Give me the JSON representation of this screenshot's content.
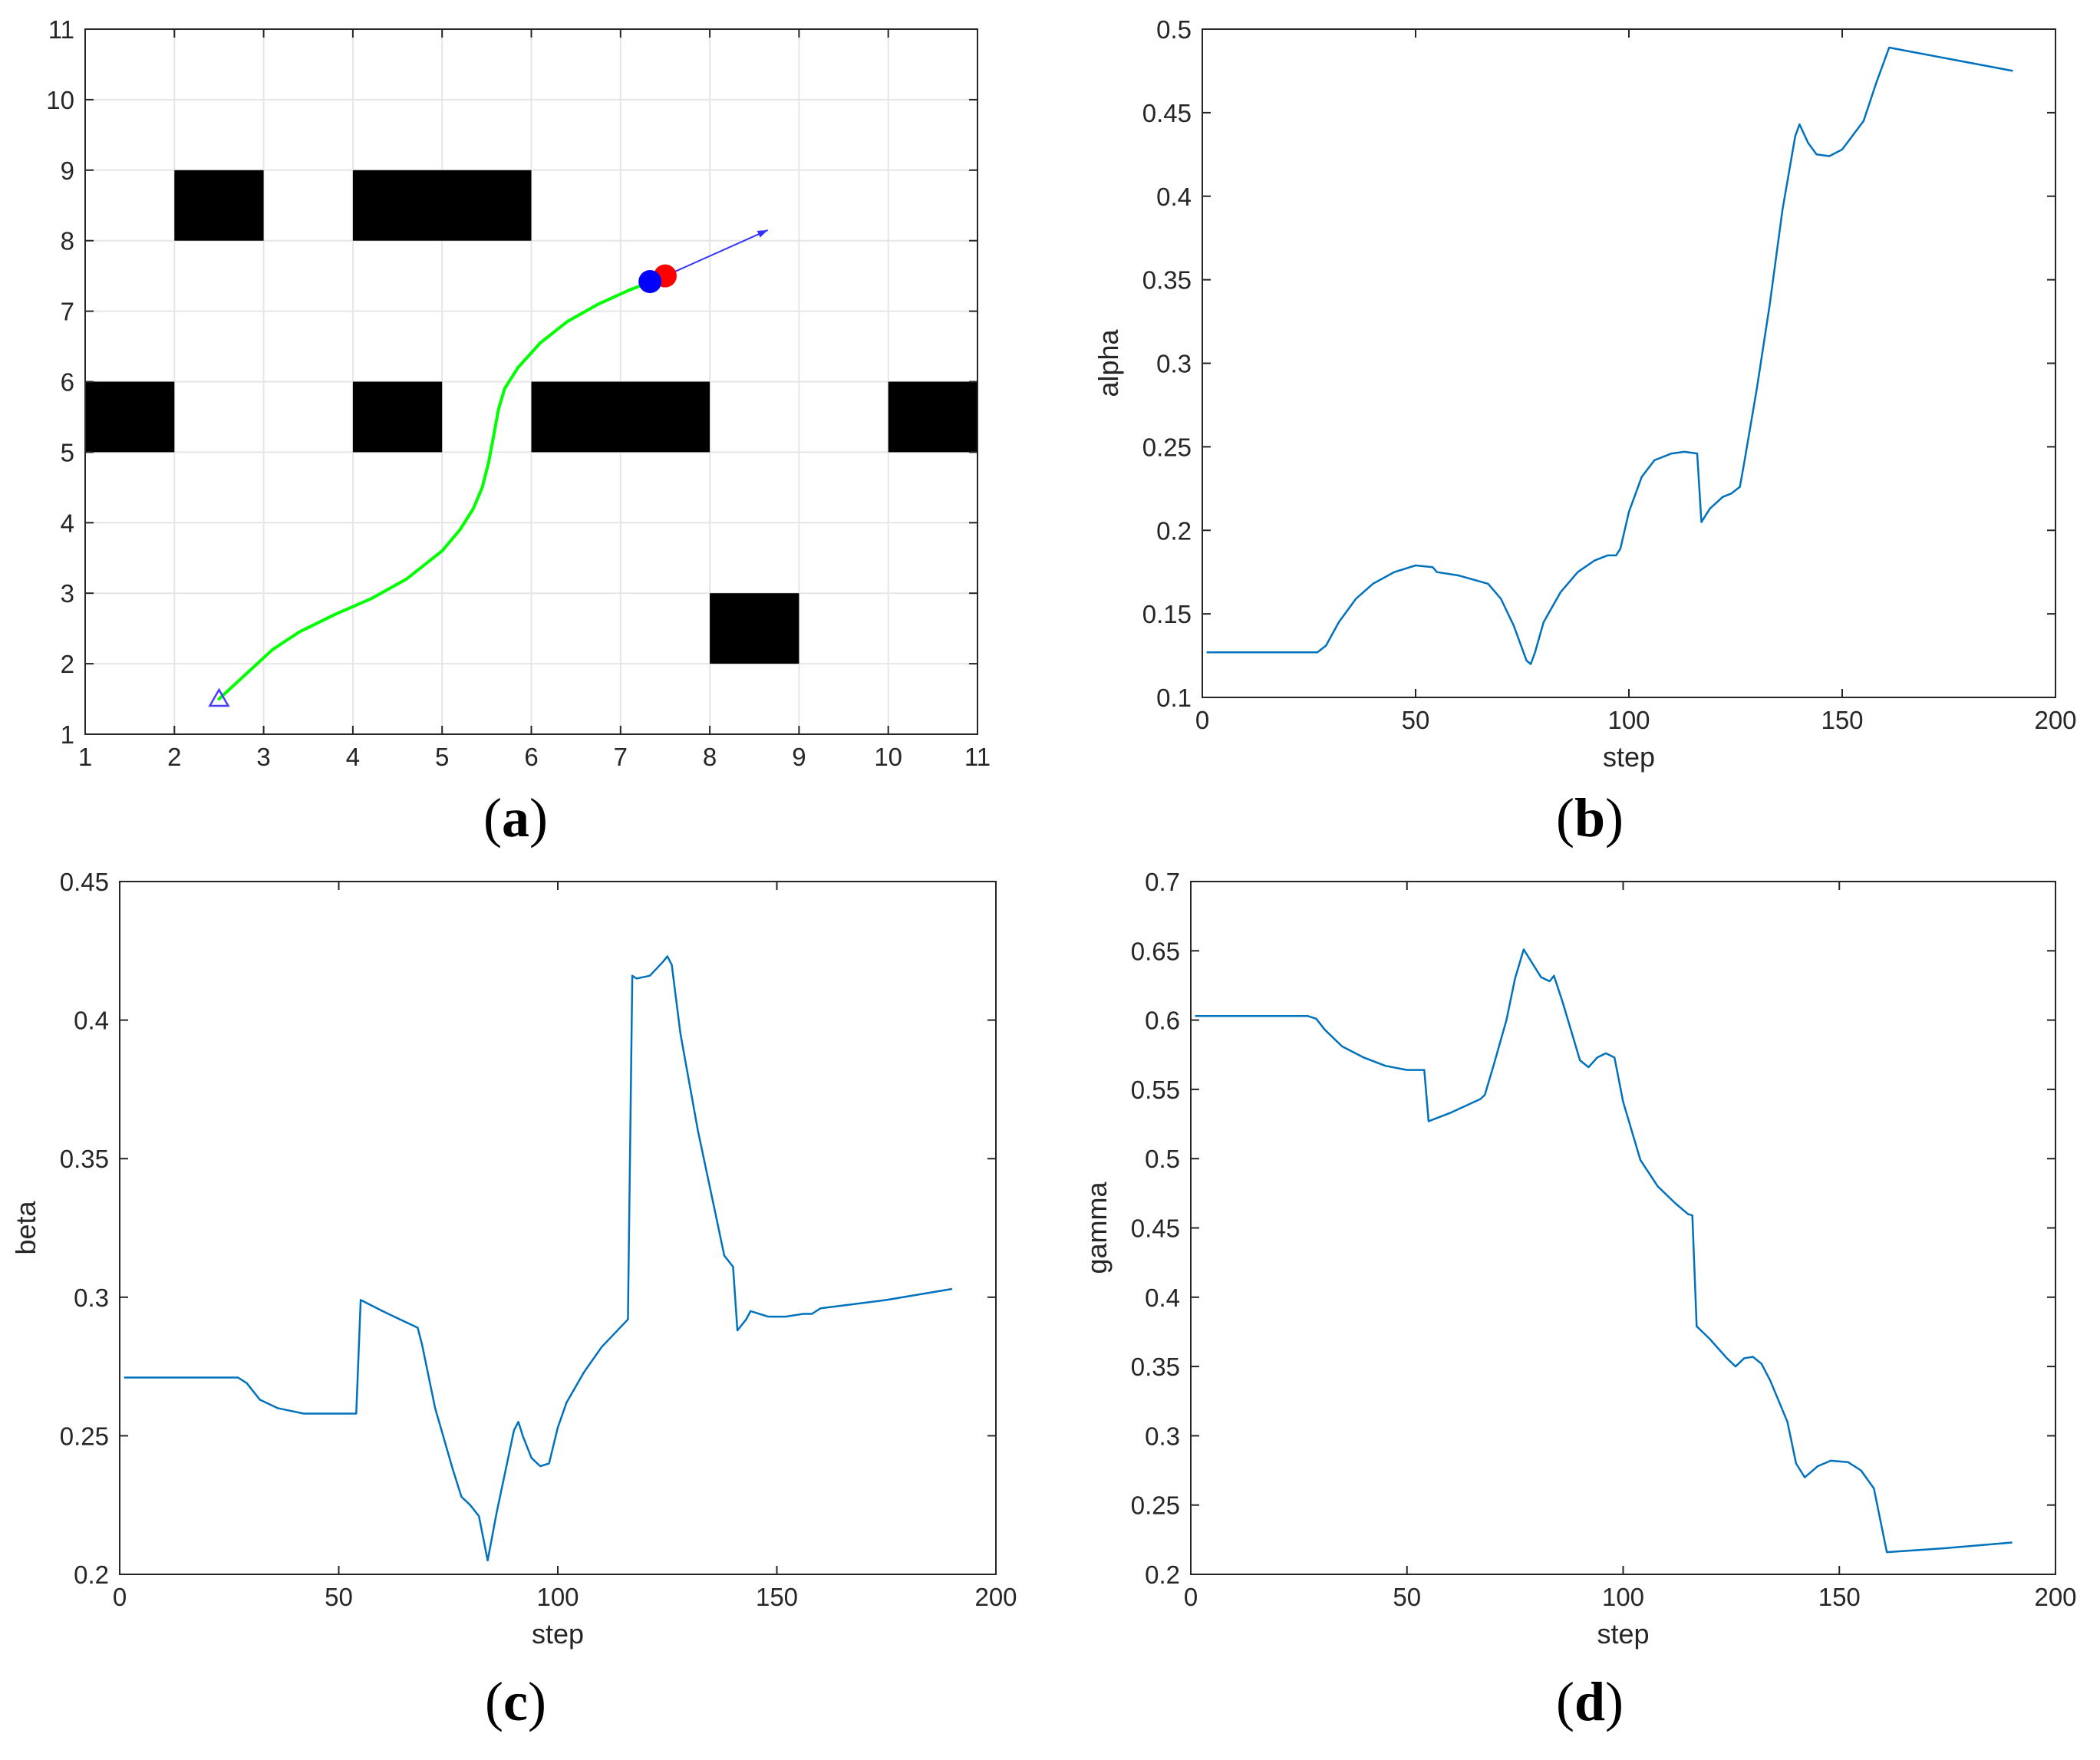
{
  "colors": {
    "line": "#0072BD",
    "path": "#00FF00",
    "obstacle": "#000000",
    "grid": "#e6e6e6",
    "axis": "#262626",
    "robot_blue": "#0000FF",
    "robot_red": "#FF0000",
    "heading_arrow": "#3333ff",
    "start_marker": "#4a3cff"
  },
  "chart_data": [
    {
      "id": "a",
      "type": "scatter",
      "caption": {
        "open": "(",
        "letter": "a",
        "close": ")"
      },
      "xlim": [
        1,
        11
      ],
      "ylim": [
        1,
        11
      ],
      "xticks": [
        "1",
        "2",
        "3",
        "4",
        "5",
        "6",
        "7",
        "8",
        "9",
        "10",
        "11"
      ],
      "yticks": [
        "1",
        "2",
        "3",
        "4",
        "5",
        "6",
        "7",
        "8",
        "9",
        "10",
        "11"
      ],
      "grid": true,
      "obstacles": [
        {
          "x": [
            2,
            3
          ],
          "y": [
            8,
            9
          ]
        },
        {
          "x": [
            4,
            6
          ],
          "y": [
            8,
            9
          ]
        },
        {
          "x": [
            1,
            2
          ],
          "y": [
            5,
            6
          ]
        },
        {
          "x": [
            4,
            5
          ],
          "y": [
            5,
            6
          ]
        },
        {
          "x": [
            6,
            8
          ],
          "y": [
            5,
            6
          ]
        },
        {
          "x": [
            10,
            11
          ],
          "y": [
            5,
            6
          ]
        },
        {
          "x": [
            8,
            9
          ],
          "y": [
            2,
            3
          ]
        }
      ],
      "path": {
        "x": [
          2.5,
          2.8,
          3.1,
          3.4,
          3.8,
          4.2,
          4.6,
          5.0,
          5.2,
          5.35,
          5.45,
          5.52,
          5.58,
          5.63,
          5.7,
          5.85,
          6.1,
          6.4,
          6.75,
          7.1,
          7.35
        ],
        "y": [
          1.5,
          1.85,
          2.2,
          2.45,
          2.7,
          2.92,
          3.2,
          3.6,
          3.9,
          4.2,
          4.5,
          4.85,
          5.25,
          5.6,
          5.9,
          6.2,
          6.55,
          6.85,
          7.1,
          7.3,
          7.42
        ]
      },
      "start": {
        "x": 2.5,
        "y": 1.5
      },
      "robot_blue": {
        "x": 7.33,
        "y": 7.42
      },
      "robot_red": {
        "x": 7.5,
        "y": 7.5
      },
      "heading": {
        "x": [
          7.5,
          8.65
        ],
        "y": [
          7.5,
          8.15
        ]
      }
    },
    {
      "id": "b",
      "type": "line",
      "caption": {
        "open": "(",
        "letter": "b",
        "close": ")"
      },
      "xlabel": "step",
      "ylabel": "alpha",
      "xlim": [
        0,
        200
      ],
      "ylim": [
        0.1,
        0.5
      ],
      "xticks": [
        "0",
        "50",
        "100",
        "150",
        "200"
      ],
      "yticks": [
        "0.1",
        "0.15",
        "0.2",
        "0.25",
        "0.3",
        "0.35",
        "0.4",
        "0.45",
        "0.5"
      ],
      "grid": false,
      "series": [
        {
          "x": [
            1,
            27,
            29,
            32,
            36,
            40,
            45,
            50,
            54,
            55,
            60,
            67,
            70,
            73,
            76,
            77,
            78,
            80,
            84,
            88,
            92,
            95,
            97,
            98,
            100,
            103,
            106,
            110,
            113,
            116,
            117,
            119,
            122,
            124,
            126,
            127,
            130,
            133,
            136,
            139,
            140,
            142,
            144,
            147,
            150,
            155,
            158,
            161,
            190
          ],
          "y": [
            0.127,
            0.127,
            0.131,
            0.145,
            0.159,
            0.168,
            0.175,
            0.179,
            0.178,
            0.175,
            0.173,
            0.168,
            0.159,
            0.143,
            0.122,
            0.12,
            0.127,
            0.145,
            0.163,
            0.175,
            0.182,
            0.185,
            0.185,
            0.189,
            0.211,
            0.232,
            0.242,
            0.246,
            0.247,
            0.246,
            0.205,
            0.213,
            0.22,
            0.222,
            0.226,
            0.24,
            0.285,
            0.335,
            0.392,
            0.436,
            0.443,
            0.432,
            0.425,
            0.424,
            0.428,
            0.445,
            0.468,
            0.489,
            0.475
          ]
        }
      ]
    },
    {
      "id": "c",
      "type": "line",
      "caption": {
        "open": "(",
        "letter": "c",
        "close": ")"
      },
      "xlabel": "step",
      "ylabel": "beta",
      "xlim": [
        0,
        200
      ],
      "ylim": [
        0.2,
        0.45
      ],
      "xticks": [
        "0",
        "50",
        "100",
        "150",
        "200"
      ],
      "yticks": [
        "0.2",
        "0.25",
        "0.3",
        "0.35",
        "0.4",
        "0.45"
      ],
      "grid": false,
      "series": [
        {
          "x": [
            1,
            27,
            29,
            32,
            36,
            42,
            48,
            54,
            55,
            60,
            64,
            68,
            69,
            72,
            76,
            78,
            80,
            82,
            84,
            86,
            88,
            90,
            91,
            92,
            94,
            96,
            98,
            100,
            102,
            106,
            110,
            116,
            117,
            118,
            121,
            124,
            125,
            126,
            128,
            132,
            136,
            138,
            140,
            141,
            143,
            144,
            148,
            152,
            156,
            158,
            160,
            175,
            190
          ],
          "y": [
            0.271,
            0.271,
            0.269,
            0.263,
            0.26,
            0.258,
            0.258,
            0.258,
            0.299,
            0.295,
            0.292,
            0.289,
            0.283,
            0.26,
            0.238,
            0.228,
            0.225,
            0.221,
            0.205,
            0.222,
            0.237,
            0.252,
            0.255,
            0.25,
            0.242,
            0.239,
            0.24,
            0.253,
            0.262,
            0.273,
            0.282,
            0.292,
            0.416,
            0.415,
            0.416,
            0.421,
            0.423,
            0.42,
            0.395,
            0.36,
            0.33,
            0.315,
            0.311,
            0.288,
            0.292,
            0.295,
            0.293,
            0.293,
            0.294,
            0.294,
            0.296,
            0.299,
            0.303
          ]
        }
      ]
    },
    {
      "id": "d",
      "type": "line",
      "caption": {
        "open": "(",
        "letter": "d",
        "close": ")"
      },
      "xlabel": "step",
      "ylabel": "gamma",
      "xlim": [
        0,
        200
      ],
      "ylim": [
        0.2,
        0.7
      ],
      "xticks": [
        "0",
        "50",
        "100",
        "150",
        "200"
      ],
      "yticks": [
        "0.2",
        "0.25",
        "0.3",
        "0.35",
        "0.4",
        "0.45",
        "0.5",
        "0.55",
        "0.6",
        "0.65",
        "0.7"
      ],
      "grid": false,
      "series": [
        {
          "x": [
            1,
            27,
            29,
            31,
            35,
            40,
            45,
            50,
            54,
            55,
            60,
            67,
            68,
            70,
            73,
            75,
            77,
            79,
            81,
            83,
            84,
            86,
            88,
            90,
            92,
            94,
            96,
            98,
            100,
            104,
            108,
            112,
            115,
            116,
            117,
            120,
            124,
            126,
            128,
            130,
            132,
            134,
            136,
            138,
            140,
            142,
            145,
            148,
            152,
            155,
            158,
            161,
            175,
            190
          ],
          "y": [
            0.603,
            0.603,
            0.601,
            0.593,
            0.581,
            0.573,
            0.567,
            0.564,
            0.564,
            0.527,
            0.533,
            0.543,
            0.546,
            0.567,
            0.6,
            0.63,
            0.651,
            0.641,
            0.631,
            0.628,
            0.632,
            0.613,
            0.592,
            0.571,
            0.566,
            0.573,
            0.576,
            0.573,
            0.541,
            0.499,
            0.48,
            0.468,
            0.46,
            0.459,
            0.379,
            0.37,
            0.356,
            0.35,
            0.356,
            0.357,
            0.352,
            0.34,
            0.325,
            0.31,
            0.28,
            0.27,
            0.278,
            0.282,
            0.281,
            0.275,
            0.262,
            0.216,
            0.219,
            0.223
          ]
        }
      ]
    }
  ]
}
